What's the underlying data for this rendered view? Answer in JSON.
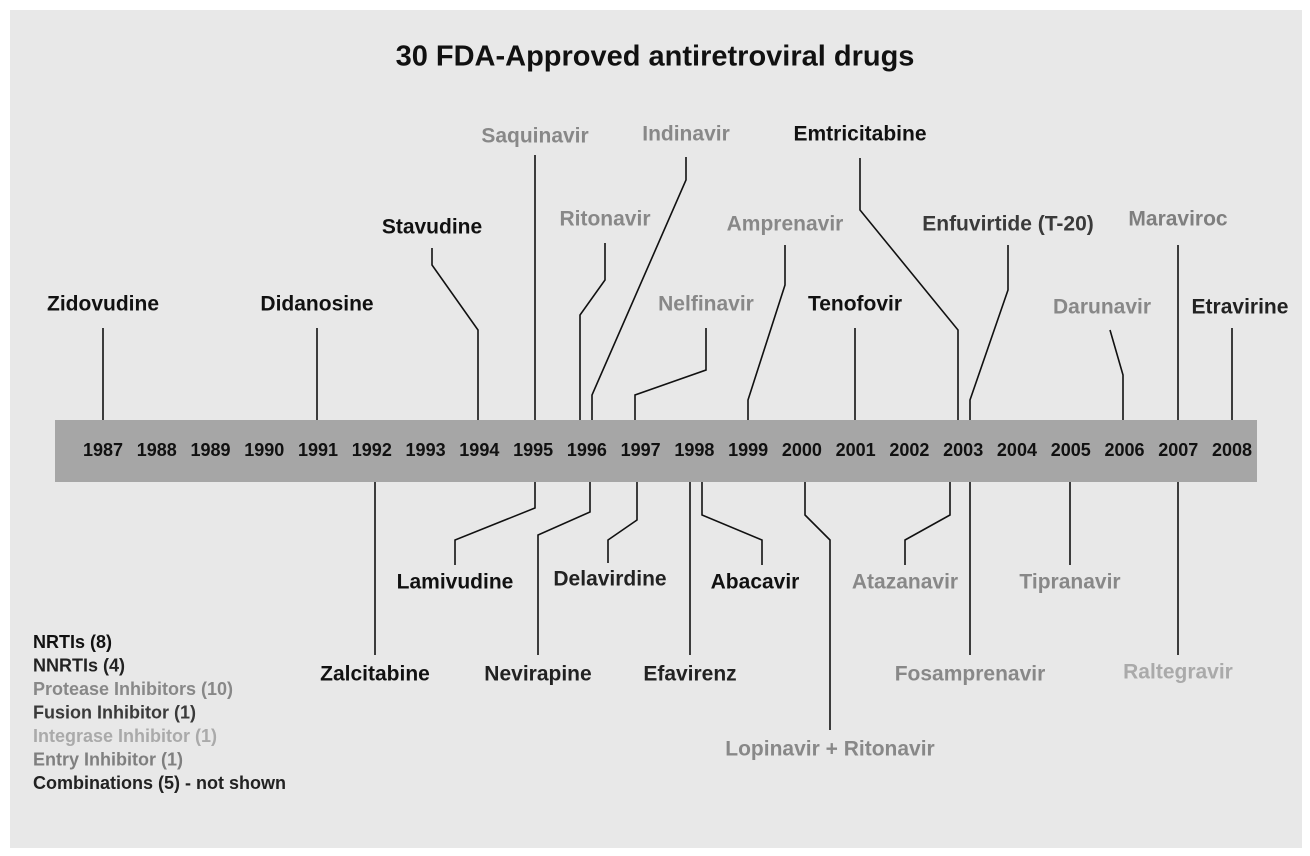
{
  "title": "30 FDA-Approved antiretroviral drugs",
  "years": [
    "1987",
    "1988",
    "1989",
    "1990",
    "1991",
    "1992",
    "1993",
    "1994",
    "1995",
    "1996",
    "1997",
    "1998",
    "1999",
    "2000",
    "2001",
    "2002",
    "2003",
    "2004",
    "2005",
    "2006",
    "2007",
    "2008"
  ],
  "drugs_above": [
    {
      "label": "Zidovudine",
      "color": "#111111"
    },
    {
      "label": "Didanosine",
      "color": "#111111"
    },
    {
      "label": "Stavudine",
      "color": "#111111"
    },
    {
      "label": "Saquinavir",
      "color": "#888888"
    },
    {
      "label": "Ritonavir",
      "color": "#888888"
    },
    {
      "label": "Indinavir",
      "color": "#888888"
    },
    {
      "label": "Nelfinavir",
      "color": "#888888"
    },
    {
      "label": "Amprenavir",
      "color": "#888888"
    },
    {
      "label": "Emtricitabine",
      "color": "#111111"
    },
    {
      "label": "Tenofovir",
      "color": "#111111"
    },
    {
      "label": "Enfuvirtide (T-20)",
      "color": "#3a3a3a"
    },
    {
      "label": "Maraviroc",
      "color": "#7f7f7f"
    },
    {
      "label": "Darunavir",
      "color": "#888888"
    },
    {
      "label": "Etravirine",
      "color": "#222222"
    }
  ],
  "drugs_below": [
    {
      "label": "Lamivudine",
      "color": "#111111"
    },
    {
      "label": "Zalcitabine",
      "color": "#111111"
    },
    {
      "label": "Nevirapine",
      "color": "#222222"
    },
    {
      "label": "Delavirdine",
      "color": "#222222"
    },
    {
      "label": "Efavirenz",
      "color": "#222222"
    },
    {
      "label": "Abacavir",
      "color": "#111111"
    },
    {
      "label": "Lopinavir + Ritonavir",
      "color": "#888888"
    },
    {
      "label": "Atazanavir",
      "color": "#888888"
    },
    {
      "label": "Fosamprenavir",
      "color": "#888888"
    },
    {
      "label": "Tipranavir",
      "color": "#888888"
    },
    {
      "label": "Raltegravir",
      "color": "#aaaaaa"
    }
  ],
  "legend": [
    {
      "label": "NRTIs (8)",
      "color": "#111111"
    },
    {
      "label": "NNRTIs (4)",
      "color": "#222222"
    },
    {
      "label": "Protease Inhibitors (10)",
      "color": "#888888"
    },
    {
      "label": "Fusion Inhibitor (1)",
      "color": "#3a3a3a"
    },
    {
      "label": "Integrase Inhibitor (1)",
      "color": "#aaaaaa"
    },
    {
      "label": "Entry Inhibitor (1)",
      "color": "#7f7f7f"
    },
    {
      "label": "Combinations (5) - not shown",
      "color": "#222222"
    }
  ]
}
